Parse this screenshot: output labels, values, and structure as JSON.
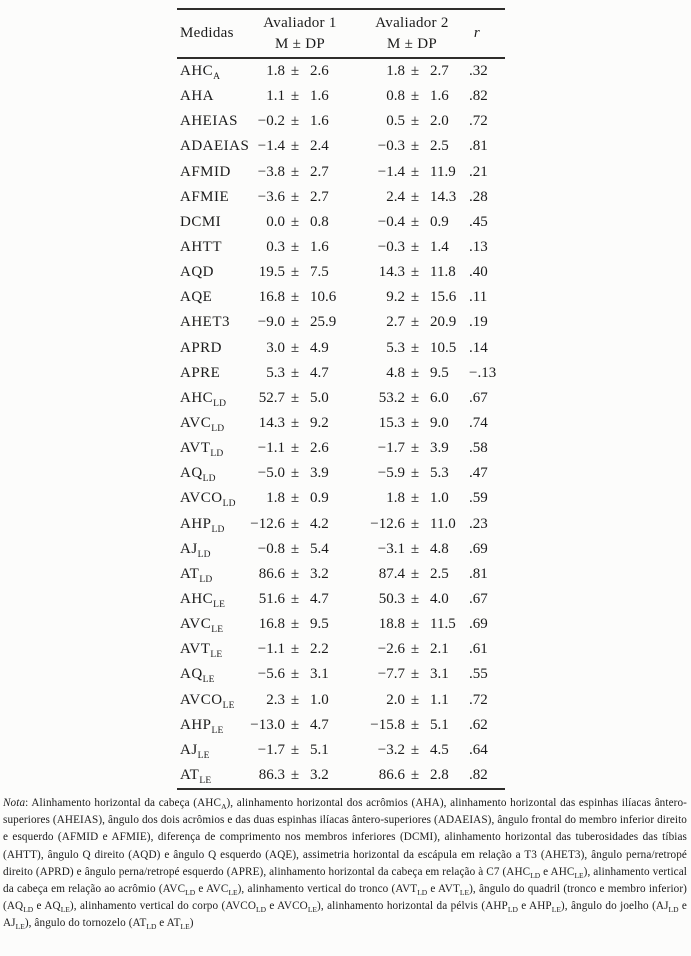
{
  "table": {
    "headers": {
      "measures": "Medidas",
      "rater1_title": "Avaliador 1",
      "rater1_sub": "M ± DP",
      "rater2_title": "Avaliador 2",
      "rater2_sub": "M ± DP",
      "r": "r"
    },
    "plus_minus": "±",
    "rows": [
      {
        "measure": "AHC",
        "sub": "A",
        "r1_m": "1.8",
        "r1_dp": "2.6",
        "r2_m": "1.8",
        "r2_dp": "2.7",
        "r": ".32"
      },
      {
        "measure": "AHA",
        "sub": "",
        "r1_m": "1.1",
        "r1_dp": "1.6",
        "r2_m": "0.8",
        "r2_dp": "1.6",
        "r": ".82"
      },
      {
        "measure": "AHEIAS",
        "sub": "",
        "r1_m": "−0.2",
        "r1_dp": "1.6",
        "r2_m": "0.5",
        "r2_dp": "2.0",
        "r": ".72"
      },
      {
        "measure": "ADAEIAS",
        "sub": "",
        "r1_m": "−1.4",
        "r1_dp": "2.4",
        "r2_m": "−0.3",
        "r2_dp": "2.5",
        "r": ".81"
      },
      {
        "measure": "AFMID",
        "sub": "",
        "r1_m": "−3.8",
        "r1_dp": "2.7",
        "r2_m": "−1.4",
        "r2_dp": "11.9",
        "r": ".21"
      },
      {
        "measure": "AFMIE",
        "sub": "",
        "r1_m": "−3.6",
        "r1_dp": "2.7",
        "r2_m": "2.4",
        "r2_dp": "14.3",
        "r": ".28"
      },
      {
        "measure": "DCMI",
        "sub": "",
        "r1_m": "0.0",
        "r1_dp": "0.8",
        "r2_m": "−0.4",
        "r2_dp": "0.9",
        "r": ".45"
      },
      {
        "measure": "AHTT",
        "sub": "",
        "r1_m": "0.3",
        "r1_dp": "1.6",
        "r2_m": "−0.3",
        "r2_dp": "1.4",
        "r": ".13"
      },
      {
        "measure": "AQD",
        "sub": "",
        "r1_m": "19.5",
        "r1_dp": "7.5",
        "r2_m": "14.3",
        "r2_dp": "11.8",
        "r": ".40"
      },
      {
        "measure": "AQE",
        "sub": "",
        "r1_m": "16.8",
        "r1_dp": "10.6",
        "r2_m": "9.2",
        "r2_dp": "15.6",
        "r": ".11"
      },
      {
        "measure": "AHET3",
        "sub": "",
        "r1_m": "−9.0",
        "r1_dp": "25.9",
        "r2_m": "2.7",
        "r2_dp": "20.9",
        "r": ".19"
      },
      {
        "measure": "APRD",
        "sub": "",
        "r1_m": "3.0",
        "r1_dp": "4.9",
        "r2_m": "5.3",
        "r2_dp": "10.5",
        "r": ".14"
      },
      {
        "measure": "APRE",
        "sub": "",
        "r1_m": "5.3",
        "r1_dp": "4.7",
        "r2_m": "4.8",
        "r2_dp": "9.5",
        "r": "−.13"
      },
      {
        "measure": "AHC",
        "sub": "LD",
        "r1_m": "52.7",
        "r1_dp": "5.0",
        "r2_m": "53.2",
        "r2_dp": "6.0",
        "r": ".67"
      },
      {
        "measure": "AVC",
        "sub": "LD",
        "r1_m": "14.3",
        "r1_dp": "9.2",
        "r2_m": "15.3",
        "r2_dp": "9.0",
        "r": ".74"
      },
      {
        "measure": "AVT",
        "sub": "LD",
        "r1_m": "−1.1",
        "r1_dp": "2.6",
        "r2_m": "−1.7",
        "r2_dp": "3.9",
        "r": ".58"
      },
      {
        "measure": "AQ",
        "sub": "LD",
        "r1_m": "−5.0",
        "r1_dp": "3.9",
        "r2_m": "−5.9",
        "r2_dp": "5.3",
        "r": ".47"
      },
      {
        "measure": "AVCO",
        "sub": "LD",
        "r1_m": "1.8",
        "r1_dp": "0.9",
        "r2_m": "1.8",
        "r2_dp": "1.0",
        "r": ".59"
      },
      {
        "measure": "AHP",
        "sub": "LD",
        "r1_m": "−12.6",
        "r1_dp": "4.2",
        "r2_m": "−12.6",
        "r2_dp": "11.0",
        "r": ".23"
      },
      {
        "measure": "AJ",
        "sub": "LD",
        "r1_m": "−0.8",
        "r1_dp": "5.4",
        "r2_m": "−3.1",
        "r2_dp": "4.8",
        "r": ".69"
      },
      {
        "measure": "AT",
        "sub": "LD",
        "r1_m": "86.6",
        "r1_dp": "3.2",
        "r2_m": "87.4",
        "r2_dp": "2.5",
        "r": ".81"
      },
      {
        "measure": "AHC",
        "sub": "LE",
        "r1_m": "51.6",
        "r1_dp": "4.7",
        "r2_m": "50.3",
        "r2_dp": "4.0",
        "r": ".67"
      },
      {
        "measure": "AVC",
        "sub": "LE",
        "r1_m": "16.8",
        "r1_dp": "9.5",
        "r2_m": "18.8",
        "r2_dp": "11.5",
        "r": ".69"
      },
      {
        "measure": "AVT",
        "sub": "LE",
        "r1_m": "−1.1",
        "r1_dp": "2.2",
        "r2_m": "−2.6",
        "r2_dp": "2.1",
        "r": ".61"
      },
      {
        "measure": "AQ",
        "sub": "LE",
        "r1_m": "−5.6",
        "r1_dp": "3.1",
        "r2_m": "−7.7",
        "r2_dp": "3.1",
        "r": ".55"
      },
      {
        "measure": "AVCO",
        "sub": "LE",
        "r1_m": "2.3",
        "r1_dp": "1.0",
        "r2_m": "2.0",
        "r2_dp": "1.1",
        "r": ".72"
      },
      {
        "measure": "AHP",
        "sub": "LE",
        "r1_m": "−13.0",
        "r1_dp": "4.7",
        "r2_m": "−15.8",
        "r2_dp": "5.1",
        "r": ".62"
      },
      {
        "measure": "AJ",
        "sub": "LE",
        "r1_m": "−1.7",
        "r1_dp": "5.1",
        "r2_m": "−3.2",
        "r2_dp": "4.5",
        "r": ".64"
      },
      {
        "measure": "AT",
        "sub": "LE",
        "r1_m": "86.3",
        "r1_dp": "3.2",
        "r2_m": "86.6",
        "r2_dp": "2.8",
        "r": ".82"
      }
    ]
  },
  "note": {
    "label": "Nota",
    "label_suffix": ": ",
    "segments": [
      {
        "t": "Alinhamento horizontal da cabeça (AHC"
      },
      {
        "t": "A",
        "sub": true
      },
      {
        "t": "), alinhamento horizontal dos acrômios (AHA), alinhamento horizontal das espinhas ilíacas ântero-superiores (AHEIAS), ângulo dos dois acrômios e das duas espinhas ilíacas ântero-superiores (ADAEIAS), ângulo frontal do membro inferior direito e esquerdo (AFMID e AFMIE), diferença de comprimento nos membros inferiores (DCMI), alinhamento horizontal das tuberosidades das tíbias (AHTT), ângulo Q direito (AQD) e ângulo Q esquerdo (AQE), assimetria horizontal da escápula em relação a T3 (AHET3), ângulo perna/retropé direito (APRD) e ângulo perna/retropé esquerdo (APRE), alinhamento horizontal da cabeça em relação à C7 (AHC"
      },
      {
        "t": "LD",
        "sub": true
      },
      {
        "t": " e AHC"
      },
      {
        "t": "LE",
        "sub": true
      },
      {
        "t": "), alinhamento vertical da cabeça em relação ao acrômio (AVC"
      },
      {
        "t": "LD",
        "sub": true
      },
      {
        "t": " e AVC"
      },
      {
        "t": "LE",
        "sub": true
      },
      {
        "t": "), alinhamento vertical do tronco (AVT"
      },
      {
        "t": "LD",
        "sub": true
      },
      {
        "t": " e AVT"
      },
      {
        "t": "LE",
        "sub": true
      },
      {
        "t": "), ângulo do quadril (tronco e membro inferior) (AQ"
      },
      {
        "t": "LD",
        "sub": true
      },
      {
        "t": " e AQ"
      },
      {
        "t": "LE",
        "sub": true
      },
      {
        "t": "), alinhamento vertical do corpo (AVCO"
      },
      {
        "t": "LD",
        "sub": true
      },
      {
        "t": " e AVCO"
      },
      {
        "t": "LE",
        "sub": true
      },
      {
        "t": "), alinhamento horizontal da pélvis (AHP"
      },
      {
        "t": "LD",
        "sub": true
      },
      {
        "t": " e AHP"
      },
      {
        "t": "LE",
        "sub": true
      },
      {
        "t": "), ângulo do joelho (AJ"
      },
      {
        "t": "LD",
        "sub": true
      },
      {
        "t": " e AJ"
      },
      {
        "t": "LE",
        "sub": true
      },
      {
        "t": "), ângulo do tornozelo (AT"
      },
      {
        "t": "LD",
        "sub": true
      },
      {
        "t": " e AT"
      },
      {
        "t": "LE",
        "sub": true
      },
      {
        "t": ")"
      }
    ]
  }
}
